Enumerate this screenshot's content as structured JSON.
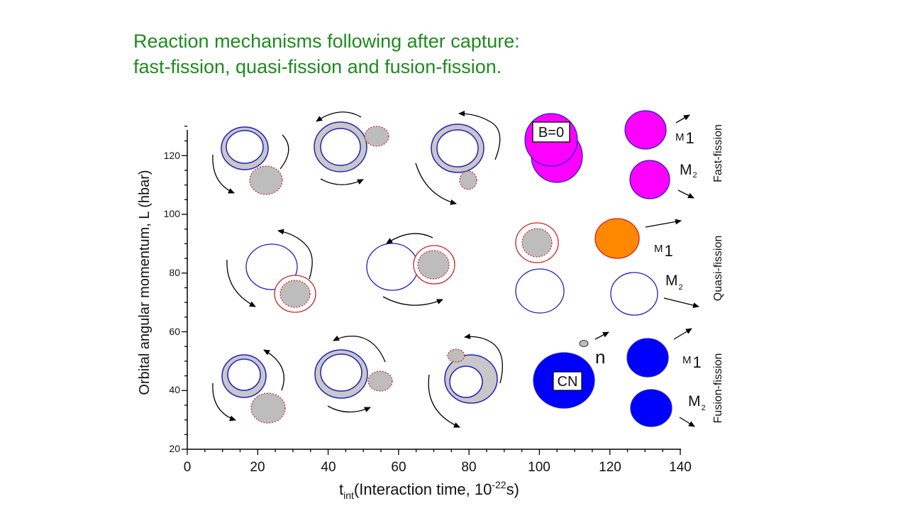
{
  "title": {
    "line1": "Reaction mechanisms following after capture:",
    "line2": "fast-fission, quasi-fission and fusion-fission."
  },
  "axes": {
    "x": {
      "label_main": "t",
      "label_sub": "int",
      "label_rest": "(Interaction time, 10",
      "label_sup": "-22",
      "label_end": "s)",
      "ticks": [
        "0",
        "20",
        "40",
        "60",
        "80",
        "100",
        "120",
        "140"
      ],
      "range": [
        0,
        140
      ]
    },
    "y": {
      "label": "Orbital angular momentum, L (hbar)",
      "ticks": [
        "20",
        "40",
        "60",
        "80",
        "100",
        "120"
      ],
      "range": [
        20,
        130
      ]
    }
  },
  "bands": {
    "fast": "Fast-fission",
    "quasi": "Quasi-fission",
    "fusion": "Fusion-fission"
  },
  "labels": {
    "b0": "B=0",
    "cn": "CN",
    "n": "n",
    "m_letter": "M",
    "sub1": "1",
    "sub2": "2"
  },
  "colors": {
    "title": "#1f8a1f",
    "ring": "#2020c0",
    "ring_fill": "#c8c8c8",
    "small_fill": "#bdbdbd",
    "small_edge": "#cc2222",
    "magenta": "#ff00ff",
    "orange": "#ff8800",
    "blue": "#0000ff"
  }
}
